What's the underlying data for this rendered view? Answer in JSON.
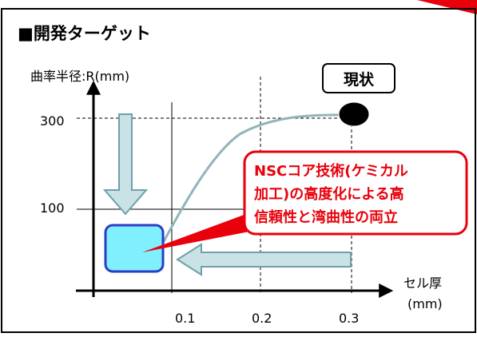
{
  "title": "■開発ターゲット",
  "yaxis_label": "曲率半径:R(mm)",
  "xaxis_label_line1": "セル厚",
  "xaxis_label_line2": "(mm)",
  "y_ticks": [
    "300",
    "100"
  ],
  "x_ticks": [
    "0.1",
    "0.2",
    "0.3"
  ],
  "current_label": "現状",
  "callout_lines": [
    "NSCコア技術(ケミカル",
    "加工)の高度化による高",
    "信頼性と湾曲性の両立"
  ],
  "colors": {
    "accent_red": "#e8000b",
    "target_fill": "#80f0ff",
    "target_stroke": "#2a3cc8",
    "arrow_fill": "#c8e2e6",
    "arrow_stroke": "#6f9fa8",
    "curve": "#8fb5ba"
  },
  "icons": {
    "arrow_down": "arrow-down-icon",
    "arrow_left": "arrow-left-icon"
  }
}
